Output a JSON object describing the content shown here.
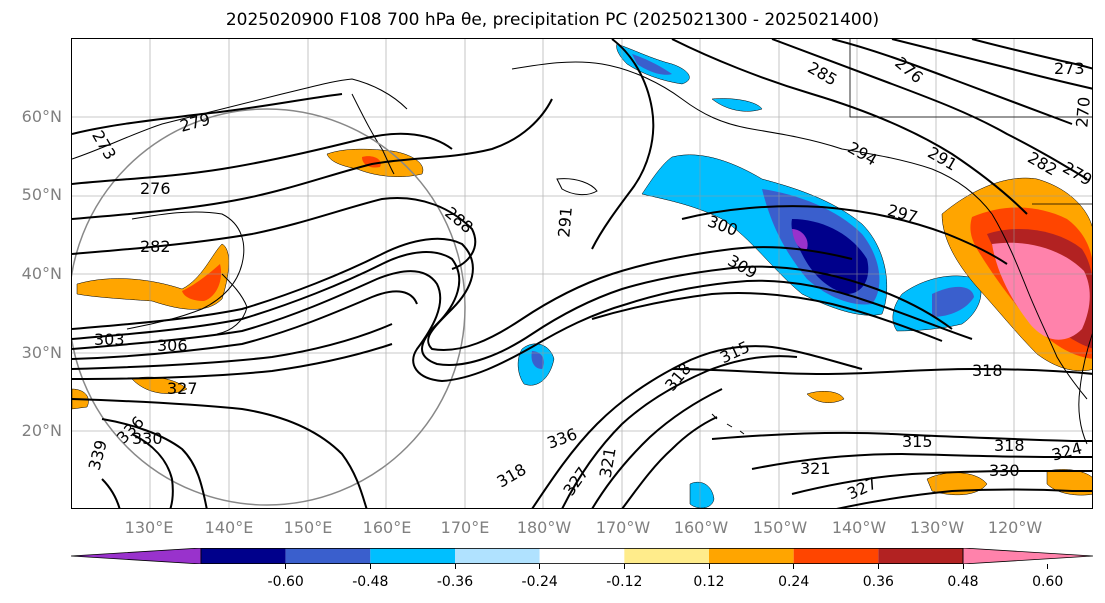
{
  "title": "2025020900 F108 700 hPa θe, precipitation PC (2025021300 - 2025021400)",
  "lat_labels": [
    "60°N",
    "50°N",
    "40°N",
    "30°N",
    "20°N"
  ],
  "lon_labels": [
    "130°E",
    "140°E",
    "150°E",
    "160°E",
    "170°E",
    "180°W",
    "170°W",
    "160°W",
    "150°W",
    "140°W",
    "130°W",
    "120°W"
  ],
  "contour_labels": [
    "273",
    "279",
    "276",
    "282",
    "303",
    "306",
    "327",
    "336",
    "339",
    "330",
    "288",
    "291",
    "300",
    "309",
    "297",
    "294",
    "285",
    "291",
    "276",
    "273",
    "282",
    "279",
    "270",
    "318",
    "315",
    "318",
    "315",
    "318",
    "321",
    "324",
    "327",
    "330",
    "321",
    "318",
    "327",
    "336"
  ],
  "colorbar": {
    "colors": [
      "#9932cc",
      "#00008b",
      "#3a5fcd",
      "#00bfff",
      "#b0e2ff",
      "#ffffff",
      "#ffec8b",
      "#ffa500",
      "#ff4500",
      "#b22222",
      "#ff82ab"
    ],
    "tick_labels": [
      "-0.60",
      "-0.48",
      "-0.36",
      "-0.24",
      "-0.12",
      "0.12",
      "0.24",
      "0.36",
      "0.48",
      "0.60"
    ]
  }
}
